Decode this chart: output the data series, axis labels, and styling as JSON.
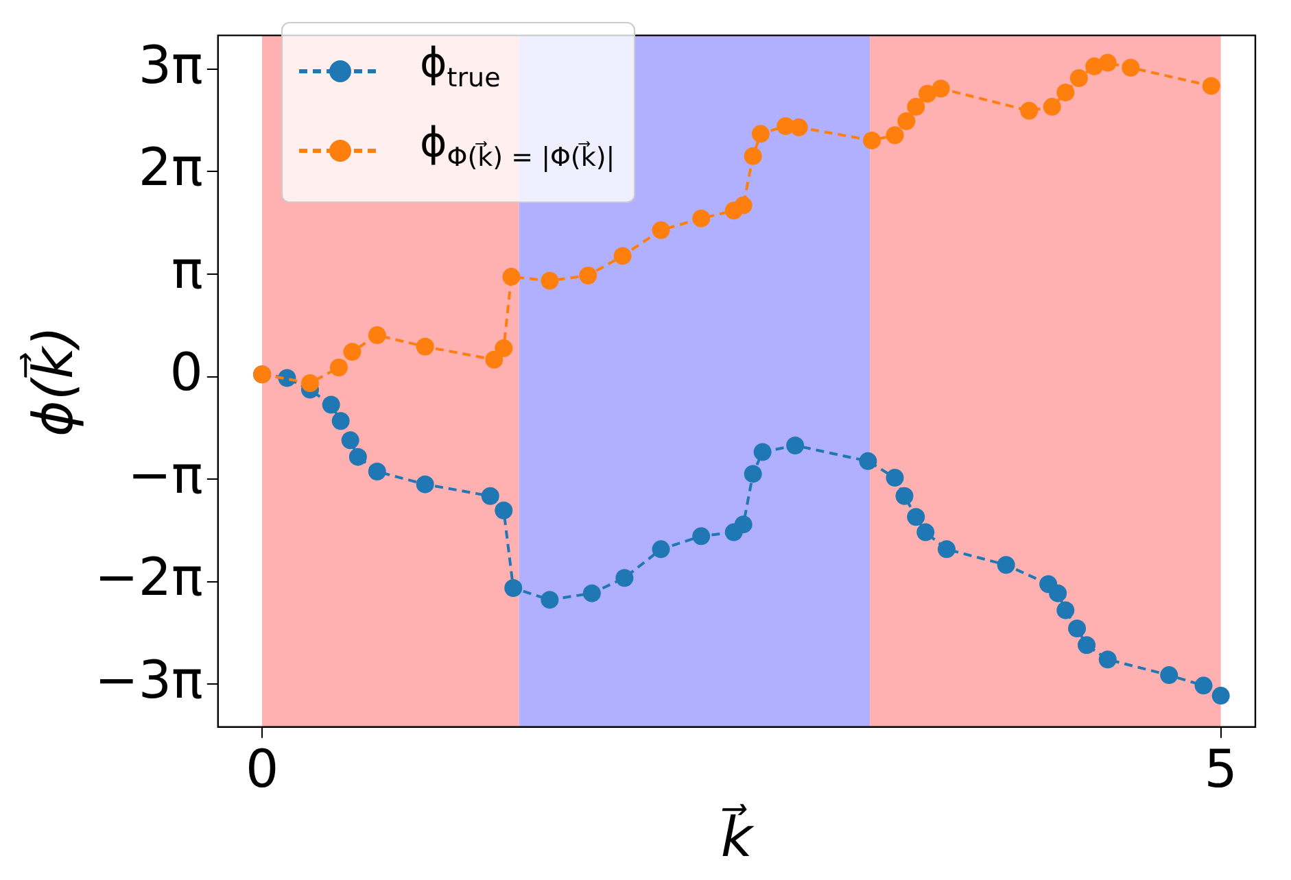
{
  "chart_data": {
    "type": "line",
    "xlabel": "k⃗",
    "ylabel": "ϕ(k⃗)",
    "xlim": [
      -0.23,
      5.18
    ],
    "xticks": [
      0,
      5
    ],
    "ylim": [
      -10.74,
      10.46
    ],
    "yticks": [
      {
        "value": -9.4248,
        "label": "−3π"
      },
      {
        "value": -6.2832,
        "label": "−2π"
      },
      {
        "value": -3.1416,
        "label": "−π"
      },
      0,
      {
        "value": 3.1416,
        "label": "π"
      },
      {
        "value": 6.2832,
        "label": "2π"
      },
      {
        "value": 9.4248,
        "label": "3π"
      }
    ],
    "grid": false,
    "legend": "top left",
    "marker": "circle",
    "line_style": "dashed",
    "bands": [
      {
        "axis": "x",
        "from": 0,
        "to": 1.34,
        "color": "#ffb0b0"
      },
      {
        "axis": "x",
        "from": 1.34,
        "to": 3.17,
        "color": "#b0b0ff"
      },
      {
        "axis": "x",
        "from": 3.17,
        "to": 5,
        "color": "#ffb0b0"
      }
    ],
    "series": [
      {
        "name": "ϕ$_{true}$",
        "color": "#1f77b4",
        "x": [
          0,
          0.13,
          0.25,
          0.36,
          0.41,
          0.46,
          0.5,
          0.6,
          0.85,
          1.19,
          1.26,
          1.31,
          1.5,
          1.72,
          1.89,
          2.08,
          2.29,
          2.46,
          2.51,
          2.56,
          2.61,
          2.78,
          3.16,
          3.3,
          3.35,
          3.41,
          3.46,
          3.57,
          3.88,
          4.1,
          4.15,
          4.19,
          4.25,
          4.3,
          4.41,
          4.73,
          4.91,
          5
        ],
        "values": [
          0.07,
          -0.04,
          -0.4,
          -0.86,
          -1.36,
          -1.95,
          -2.46,
          -2.91,
          -3.3,
          -3.66,
          -4.1,
          -6.48,
          -6.84,
          -6.64,
          -6.17,
          -5.29,
          -4.89,
          -4.77,
          -4.53,
          -2.98,
          -2.31,
          -2.11,
          -2.59,
          -3.1,
          -3.66,
          -4.3,
          -4.77,
          -5.29,
          -5.77,
          -6.36,
          -6.64,
          -7.16,
          -7.72,
          -8.23,
          -8.67,
          -9.15,
          -9.47,
          -9.78
        ]
      },
      {
        "name": "ϕ$_{Φ(k⃗) = |Φ(k⃗)|}$",
        "color": "#ff7f0e",
        "x": [
          0,
          0.25,
          0.4,
          0.47,
          0.6,
          0.85,
          1.21,
          1.26,
          1.3,
          1.5,
          1.7,
          1.88,
          2.08,
          2.29,
          2.46,
          2.51,
          2.56,
          2.6,
          2.73,
          2.8,
          3.18,
          3.3,
          3.36,
          3.41,
          3.47,
          3.54,
          4,
          4.12,
          4.19,
          4.26,
          4.34,
          4.41,
          4.53,
          4.95
        ],
        "values": [
          0.07,
          -0.2,
          0.28,
          0.76,
          1.27,
          0.92,
          0.52,
          0.87,
          3.06,
          2.94,
          3.1,
          3.7,
          4.49,
          4.85,
          5.09,
          5.25,
          6.76,
          7.44,
          7.68,
          7.64,
          7.24,
          7.4,
          7.83,
          8.27,
          8.67,
          8.83,
          8.15,
          8.27,
          8.71,
          9.15,
          9.51,
          9.62,
          9.47,
          8.91
        ]
      }
    ]
  }
}
